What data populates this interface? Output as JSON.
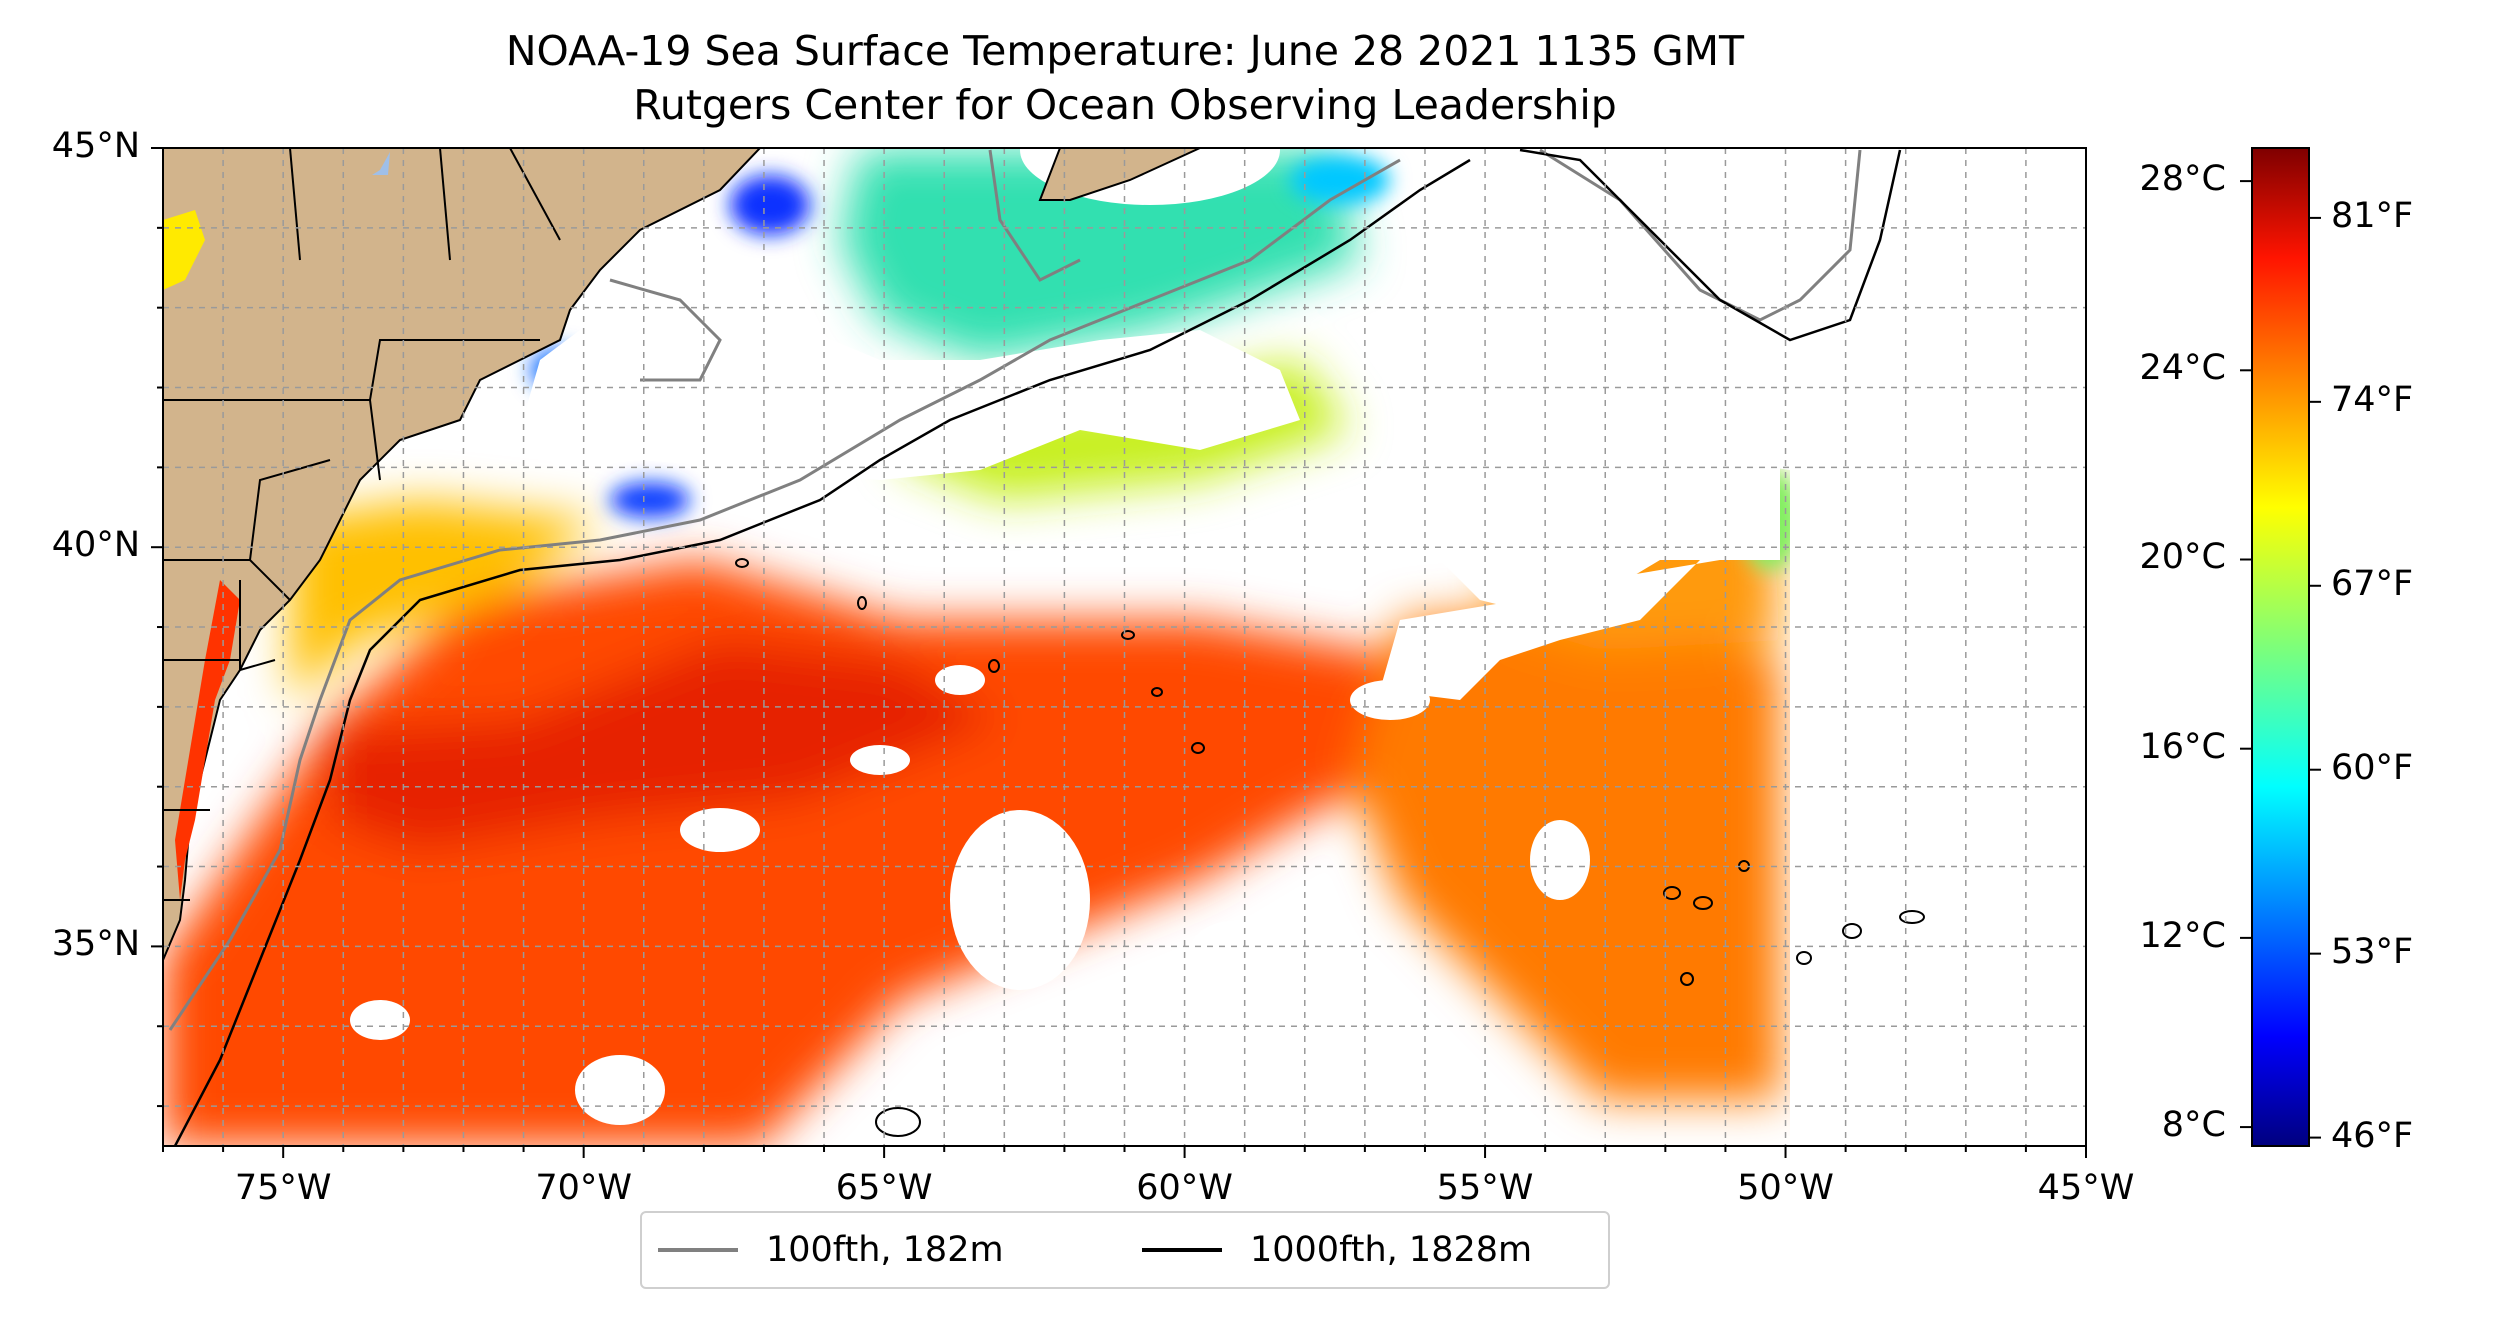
{
  "title": "NOAA-19 Sea Surface Temperature: June 28 2021 1135 GMT",
  "subtitle": "Rutgers Center for Ocean Observing Leadership",
  "map": {
    "lon_range": [
      -77,
      -45
    ],
    "lat_range": [
      32.5,
      45
    ],
    "lat_ticks": [
      {
        "value": 45,
        "label": "45°N"
      },
      {
        "value": 40,
        "label": "40°N"
      },
      {
        "value": 35,
        "label": "35°N"
      }
    ],
    "lon_ticks": [
      {
        "value": -75,
        "label": "75°W"
      },
      {
        "value": -70,
        "label": "70°W"
      },
      {
        "value": -65,
        "label": "65°W"
      },
      {
        "value": -60,
        "label": "60°W"
      },
      {
        "value": -55,
        "label": "55°W"
      },
      {
        "value": -50,
        "label": "50°W"
      },
      {
        "value": -45,
        "label": "45°W"
      }
    ],
    "gridlines": "dashed",
    "land_color": "#d2b48c",
    "water_inland_color": "#9fbfe8"
  },
  "colorbar": {
    "colormap": "jet",
    "celsius_range": [
      7.6,
      28.7
    ],
    "celsius_ticks": [
      {
        "value": 28,
        "label": "28°C"
      },
      {
        "value": 24,
        "label": "24°C"
      },
      {
        "value": 20,
        "label": "20°C"
      },
      {
        "value": 16,
        "label": "16°C"
      },
      {
        "value": 12,
        "label": "12°C"
      },
      {
        "value": 8,
        "label": "8°C"
      }
    ],
    "fahrenheit_ticks": [
      {
        "value": 81,
        "label": "81°F"
      },
      {
        "value": 74,
        "label": "74°F"
      },
      {
        "value": 67,
        "label": "67°F"
      },
      {
        "value": 60,
        "label": "60°F"
      },
      {
        "value": 53,
        "label": "53°F"
      },
      {
        "value": 46,
        "label": "46°F"
      }
    ]
  },
  "legend": {
    "placement": "bottom-center",
    "items": [
      {
        "label": "100fth, 182m",
        "color": "#808080"
      },
      {
        "label": "1000fth, 1828m",
        "color": "#000000"
      }
    ]
  }
}
